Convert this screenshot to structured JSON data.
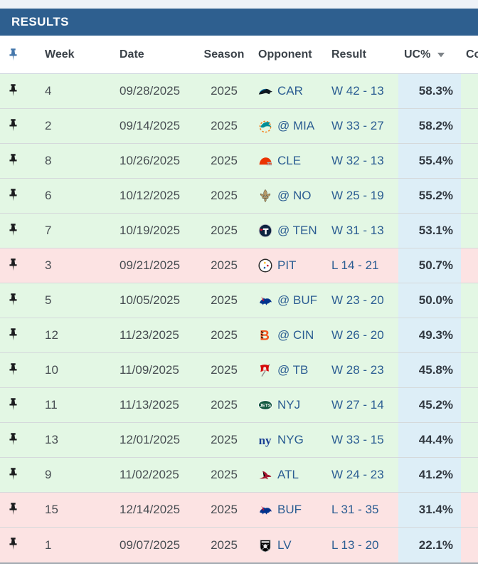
{
  "title_bar": {
    "title": "RESULTS"
  },
  "colors": {
    "title_bar_bg": "#2e5f8f",
    "win_row_bg": "#e3f7e4",
    "loss_row_bg": "#fce3e3",
    "uc_column_bg": "#ddeef7",
    "link_blue": "#2b5d92",
    "header_pin_blue": "#4577ab"
  },
  "table": {
    "header": {
      "pin_icon": "pin-icon",
      "week": "Week",
      "date": "Date",
      "season": "Season",
      "opponent": "Opponent",
      "result": "Result",
      "uc": "UC%",
      "uc_sort": "descending",
      "co_partial": "Co"
    },
    "rows": [
      {
        "week": "4",
        "date": "09/28/2025",
        "season": "2025",
        "opponent": "CAR",
        "team": "CAR",
        "logo": "panthers-logo",
        "result": "W 42 - 13",
        "uc": "58.3%",
        "outcome": "win"
      },
      {
        "week": "2",
        "date": "09/14/2025",
        "season": "2025",
        "opponent": "@ MIA",
        "team": "MIA",
        "logo": "dolphins-logo",
        "result": "W 33 - 27",
        "uc": "58.2%",
        "outcome": "win"
      },
      {
        "week": "8",
        "date": "10/26/2025",
        "season": "2025",
        "opponent": "CLE",
        "team": "CLE",
        "logo": "browns-logo",
        "result": "W 32 - 13",
        "uc": "55.4%",
        "outcome": "win"
      },
      {
        "week": "6",
        "date": "10/12/2025",
        "season": "2025",
        "opponent": "@ NO",
        "team": "NO",
        "logo": "saints-logo",
        "result": "W 25 - 19",
        "uc": "55.2%",
        "outcome": "win"
      },
      {
        "week": "7",
        "date": "10/19/2025",
        "season": "2025",
        "opponent": "@ TEN",
        "team": "TEN",
        "logo": "titans-logo",
        "result": "W 31 - 13",
        "uc": "53.1%",
        "outcome": "win"
      },
      {
        "week": "3",
        "date": "09/21/2025",
        "season": "2025",
        "opponent": "PIT",
        "team": "PIT",
        "logo": "steelers-logo",
        "result": "L 14 - 21",
        "uc": "50.7%",
        "outcome": "loss"
      },
      {
        "week": "5",
        "date": "10/05/2025",
        "season": "2025",
        "opponent": "@ BUF",
        "team": "BUF",
        "logo": "bills-logo",
        "result": "W 23 - 20",
        "uc": "50.0%",
        "outcome": "win"
      },
      {
        "week": "12",
        "date": "11/23/2025",
        "season": "2025",
        "opponent": "@ CIN",
        "team": "CIN",
        "logo": "bengals-logo",
        "result": "W 26 - 20",
        "uc": "49.3%",
        "outcome": "win"
      },
      {
        "week": "10",
        "date": "11/09/2025",
        "season": "2025",
        "opponent": "@ TB",
        "team": "TB",
        "logo": "buccaneers-logo",
        "result": "W 28 - 23",
        "uc": "45.8%",
        "outcome": "win"
      },
      {
        "week": "11",
        "date": "11/13/2025",
        "season": "2025",
        "opponent": "NYJ",
        "team": "NYJ",
        "logo": "jets-logo",
        "result": "W 27 - 14",
        "uc": "45.2%",
        "outcome": "win"
      },
      {
        "week": "13",
        "date": "12/01/2025",
        "season": "2025",
        "opponent": "NYG",
        "team": "NYG",
        "logo": "giants-logo",
        "result": "W 33 - 15",
        "uc": "44.4%",
        "outcome": "win"
      },
      {
        "week": "9",
        "date": "11/02/2025",
        "season": "2025",
        "opponent": "ATL",
        "team": "ATL",
        "logo": "falcons-logo",
        "result": "W 24 - 23",
        "uc": "41.2%",
        "outcome": "win"
      },
      {
        "week": "15",
        "date": "12/14/2025",
        "season": "2025",
        "opponent": "BUF",
        "team": "BUF",
        "logo": "bills-logo",
        "result": "L 31 - 35",
        "uc": "31.4%",
        "outcome": "loss"
      },
      {
        "week": "1",
        "date": "09/07/2025",
        "season": "2025",
        "opponent": "LV",
        "team": "LV",
        "logo": "raiders-logo",
        "result": "L 13 - 20",
        "uc": "22.1%",
        "outcome": "loss"
      }
    ]
  }
}
